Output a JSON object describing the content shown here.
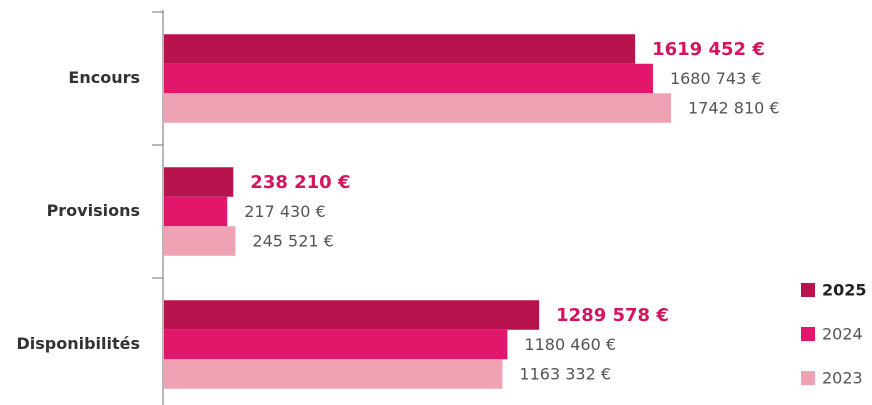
{
  "chart_data": {
    "type": "hbar",
    "categories": [
      "Encours",
      "Provisions",
      "Disponibilités"
    ],
    "series": [
      {
        "name": "2025",
        "color": "#b8124f",
        "values": [
          1619452,
          238210,
          1289578
        ],
        "value_labels": [
          "1619 452 €",
          "238 210 €",
          "1289 578 €"
        ]
      },
      {
        "name": "2024",
        "color": "#e2176b",
        "values": [
          1680743,
          217430,
          1180460
        ],
        "value_labels": [
          "1680 743 €",
          "217 430 €",
          "1180 460 €"
        ]
      },
      {
        "name": "2023",
        "color": "#eea2b3",
        "values": [
          1742810,
          245521,
          1163332
        ],
        "value_labels": [
          "1742 810 €",
          "245 521 €",
          "1163 332 €"
        ]
      }
    ],
    "legend": "bottom-right"
  }
}
